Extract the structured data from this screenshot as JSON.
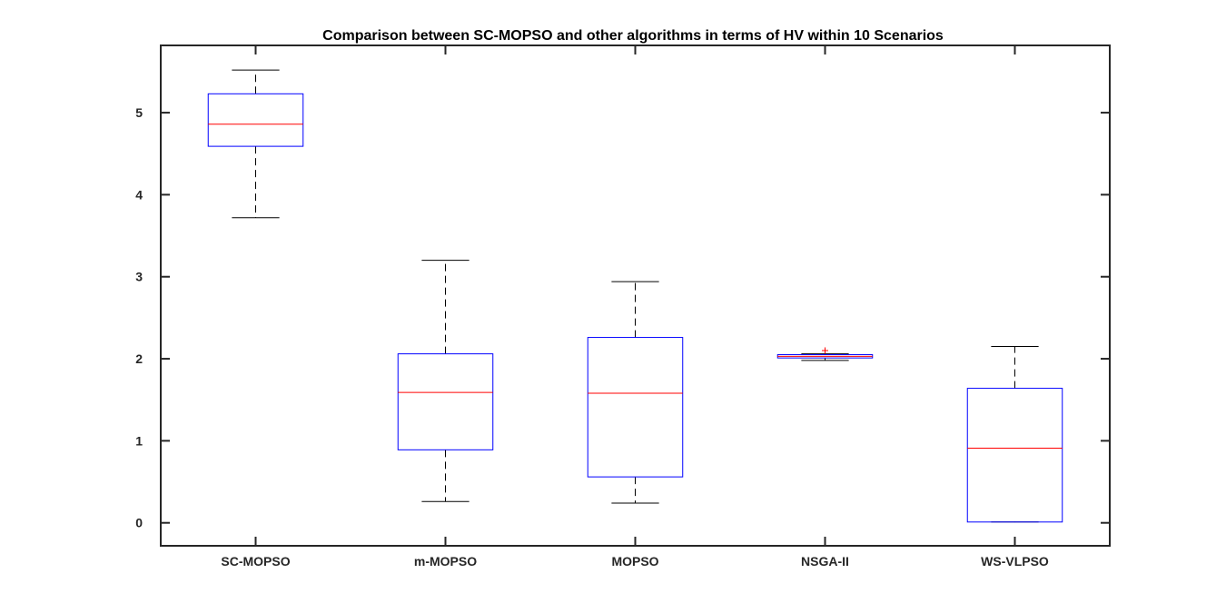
{
  "chart_data": {
    "type": "box",
    "title": "Comparison between SC-MOPSO and other algorithms in terms of HV within 10 Scenarios",
    "xlabel": "",
    "ylabel": "",
    "ylim": [
      -0.28,
      5.82
    ],
    "yticks": [
      0,
      1,
      2,
      3,
      4,
      5
    ],
    "grid": false,
    "box_color": "#0000ff",
    "median_color": "#ff0000",
    "whisker_color": "#000000",
    "outlier_color": "#ff0000",
    "categories": [
      "SC-MOPSO",
      "m-MOPSO",
      "MOPSO",
      "NSGA-II",
      "WS-VLPSO"
    ],
    "boxes": [
      {
        "label": "SC-MOPSO",
        "whisker_low": 3.72,
        "q1": 4.59,
        "median": 4.86,
        "q3": 5.23,
        "whisker_high": 5.52,
        "outliers": []
      },
      {
        "label": "m-MOPSO",
        "whisker_low": 0.26,
        "q1": 0.89,
        "median": 1.59,
        "q3": 2.06,
        "whisker_high": 3.2,
        "outliers": []
      },
      {
        "label": "MOPSO",
        "whisker_low": 0.24,
        "q1": 0.56,
        "median": 1.58,
        "q3": 2.26,
        "whisker_high": 2.94,
        "outliers": []
      },
      {
        "label": "NSGA-II",
        "whisker_low": 1.98,
        "q1": 2.01,
        "median": 2.03,
        "q3": 2.05,
        "whisker_high": 2.06,
        "outliers": [
          2.1
        ]
      },
      {
        "label": "WS-VLPSO",
        "whisker_low": 0.01,
        "q1": 0.01,
        "median": 0.91,
        "q3": 1.64,
        "whisker_high": 2.15,
        "outliers": []
      }
    ]
  }
}
